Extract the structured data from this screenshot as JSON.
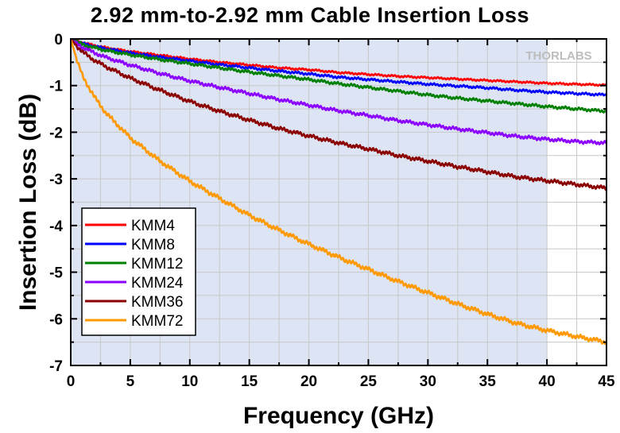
{
  "chart_data": {
    "type": "line",
    "title": "2.92 mm-to-2.92 mm Cable Insertion Loss",
    "xlabel": "Frequency (GHz)",
    "ylabel": "Insertion Loss (dB)",
    "xlim": [
      0,
      45
    ],
    "ylim": [
      -7,
      0
    ],
    "xticks": [
      "0",
      "5",
      "10",
      "15",
      "20",
      "25",
      "30",
      "35",
      "40",
      "45"
    ],
    "yticks": [
      "0",
      "-1",
      "-2",
      "-3",
      "-4",
      "-5",
      "-6",
      "-7"
    ],
    "shaded_region": [
      0,
      40
    ],
    "shaded_color": "#dde4f4",
    "grid": true,
    "legend_position": "bottom-left",
    "watermark": "THORLABS",
    "x": [
      0,
      0.5,
      1,
      2,
      3,
      5,
      7.5,
      10,
      12.5,
      15,
      17.5,
      20,
      22.5,
      25,
      27.5,
      30,
      32.5,
      35,
      37.5,
      40,
      42.5,
      45
    ],
    "series": [
      {
        "name": "KMM4",
        "color": "#ff0000",
        "values": [
          0,
          -0.04,
          -0.08,
          -0.14,
          -0.19,
          -0.27,
          -0.35,
          -0.43,
          -0.5,
          -0.56,
          -0.62,
          -0.66,
          -0.72,
          -0.76,
          -0.8,
          -0.83,
          -0.86,
          -0.89,
          -0.92,
          -0.95,
          -0.97,
          -0.99
        ]
      },
      {
        "name": "KMM8",
        "color": "#0000ff",
        "values": [
          0,
          -0.05,
          -0.1,
          -0.16,
          -0.21,
          -0.3,
          -0.39,
          -0.47,
          -0.55,
          -0.62,
          -0.69,
          -0.75,
          -0.82,
          -0.87,
          -0.92,
          -0.97,
          -1.01,
          -1.05,
          -1.1,
          -1.14,
          -1.17,
          -1.2
        ]
      },
      {
        "name": "KMM12",
        "color": "#008000",
        "values": [
          0,
          -0.06,
          -0.12,
          -0.19,
          -0.25,
          -0.34,
          -0.44,
          -0.53,
          -0.62,
          -0.71,
          -0.79,
          -0.87,
          -0.96,
          -1.04,
          -1.12,
          -1.2,
          -1.27,
          -1.33,
          -1.39,
          -1.45,
          -1.5,
          -1.55
        ]
      },
      {
        "name": "KMM24",
        "color": "#8b00ff",
        "values": [
          0,
          -0.1,
          -0.18,
          -0.3,
          -0.4,
          -0.56,
          -0.74,
          -0.9,
          -1.04,
          -1.17,
          -1.3,
          -1.42,
          -1.54,
          -1.64,
          -1.75,
          -1.84,
          -1.93,
          -2.01,
          -2.09,
          -2.15,
          -2.2,
          -2.23
        ]
      },
      {
        "name": "KMM36",
        "color": "#8b0000",
        "values": [
          0,
          -0.15,
          -0.28,
          -0.46,
          -0.6,
          -0.84,
          -1.1,
          -1.34,
          -1.55,
          -1.74,
          -1.92,
          -2.08,
          -2.23,
          -2.36,
          -2.5,
          -2.62,
          -2.74,
          -2.85,
          -2.96,
          -3.04,
          -3.12,
          -3.2
        ]
      },
      {
        "name": "KMM72",
        "color": "#ff9900",
        "values": [
          0,
          -0.45,
          -0.8,
          -1.25,
          -1.6,
          -2.12,
          -2.62,
          -3.05,
          -3.42,
          -3.78,
          -4.1,
          -4.4,
          -4.68,
          -4.94,
          -5.2,
          -5.44,
          -5.68,
          -5.9,
          -6.1,
          -6.25,
          -6.38,
          -6.5
        ]
      }
    ]
  }
}
